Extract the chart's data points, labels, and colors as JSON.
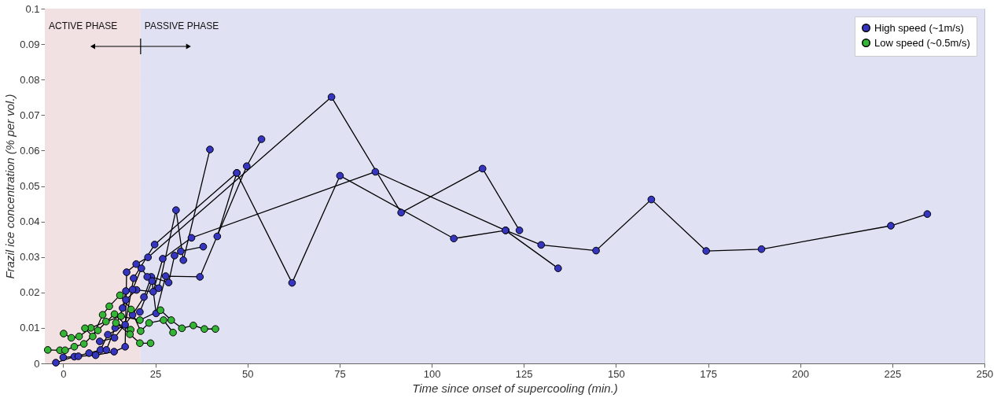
{
  "chart_data": {
    "type": "line",
    "xlabel": "Time since onset of supercooling (min.)",
    "ylabel": "Frazil ice concentration (% per vol.)",
    "xlim": [
      -5,
      250
    ],
    "xticks": [
      0,
      25,
      50,
      75,
      100,
      125,
      150,
      175,
      200,
      225,
      250
    ],
    "ylim": [
      0,
      0.1
    ],
    "yticks": [
      0,
      0.01,
      0.02,
      0.03,
      0.04,
      0.05,
      0.06,
      0.07,
      0.08,
      0.09,
      0.1
    ],
    "grid": true,
    "legend": "top right",
    "marker": "circle",
    "line_style": "solid",
    "bands": [
      {
        "axis": "x",
        "from": -5,
        "to": 21,
        "label": "ACTIVE PHASE",
        "color": "#f2e1e3"
      },
      {
        "axis": "x",
        "from": 21,
        "to": 250,
        "label": "PASSIVE PHASE",
        "color": "#e0e1f3"
      }
    ],
    "series": [
      {
        "name": "High speed (~1m/s)",
        "color": "#3535c0",
        "x": [
          -2,
          3,
          7,
          10.1,
          12.1,
          16.8,
          19.1,
          24.8,
          47.1,
          62.1,
          75.1,
          106,
          120.1,
          129.7,
          144.6,
          159.6,
          174.5,
          189.5,
          224.6,
          234.5
        ],
        "values": [
          0.0002,
          0.0019,
          0.0029,
          0.0038,
          0.0081,
          0.0109,
          0.024,
          0.0335,
          0.0537,
          0.0227,
          0.0529,
          0.0352,
          0.0375,
          0.0334,
          0.0318,
          0.0462,
          0.0317,
          0.0322,
          0.0388,
          0.0421
        ]
      },
      {
        "color": "#3535c0",
        "x": [
          0,
          4.1,
          8.8,
          13.8,
          16.8,
          17.2,
          19.8,
          23,
          72.8,
          91.7,
          113.8,
          123.8
        ],
        "values": [
          0.0017,
          0.002,
          0.0023,
          0.0033,
          0.0047,
          0.0257,
          0.028,
          0.0299,
          0.0751,
          0.0425,
          0.0549,
          0.0375
        ]
      },
      {
        "color": "#3535c0",
        "x": [
          11.7,
          14.1,
          17,
          19.9,
          24.4,
          27,
          34.8,
          84.7,
          120,
          134.3
        ],
        "values": [
          0.0038,
          0.01,
          0.0179,
          0.0207,
          0.0202,
          0.0295,
          0.0354,
          0.054,
          0.0375,
          0.0268
        ]
      },
      {
        "color": "#3535c0",
        "x": [
          9.9,
          13.9,
          18.8,
          21.9,
          23.9,
          28.6,
          30.2,
          31.9,
          38
        ],
        "values": [
          0.0062,
          0.0072,
          0.0137,
          0.0187,
          0.0244,
          0.0228,
          0.0304,
          0.0316,
          0.0329
        ]
      },
      {
        "color": "#3535c0",
        "x": [
          16.1,
          17,
          18.8,
          21.2,
          22.8,
          25.9,
          30.6,
          32.6,
          39.8
        ],
        "values": [
          0.0156,
          0.0204,
          0.0208,
          0.0268,
          0.0244,
          0.0212,
          0.0432,
          0.0291,
          0.0603
        ]
      },
      {
        "color": "#3535c0",
        "x": [
          20.8,
          24.1,
          25.2,
          27.8,
          37.1,
          49.8,
          53.8
        ],
        "values": [
          0.0145,
          0.0232,
          0.0141,
          0.0246,
          0.0244,
          0.0556,
          0.0632
        ]
      },
      {
        "color": "#3535c0",
        "x": [
          41.8,
          47.1
        ],
        "values": [
          0.0358,
          0.0537
        ]
      },
      {
        "name": "Low speed (~0.5m/s)",
        "color": "#35b535",
        "x": [
          -4.2,
          -0.9,
          0.5,
          3,
          5.6,
          9.4,
          13.9,
          18.3,
          14.3,
          18.1,
          20.8,
          23.7
        ],
        "values": [
          0.0038,
          0.0037,
          0.0037,
          0.0047,
          0.0055,
          0.0093,
          0.0139,
          0.0095,
          0.0114,
          0.0082,
          0.0057,
          0.0057
        ]
      },
      {
        "color": "#35b535",
        "x": [
          0.1,
          2.2,
          4.3,
          7.5,
          11.6,
          15.7,
          20.8,
          26.4,
          29.3,
          32.2,
          35.3,
          38.3,
          41.3
        ],
        "values": [
          0.0084,
          0.0072,
          0.0076,
          0.01,
          0.0118,
          0.0133,
          0.0122,
          0.015,
          0.0122,
          0.0099,
          0.0107,
          0.0097,
          0.0097
        ]
      },
      {
        "color": "#35b535",
        "x": [
          5.9,
          8,
          10.7,
          12.5,
          15.4,
          18.4,
          21,
          23.3,
          27.2,
          29.8
        ],
        "values": [
          0.0099,
          0.0076,
          0.0137,
          0.0161,
          0.0192,
          0.0152,
          0.0091,
          0.0114,
          0.0122,
          0.0087
        ]
      }
    ]
  }
}
